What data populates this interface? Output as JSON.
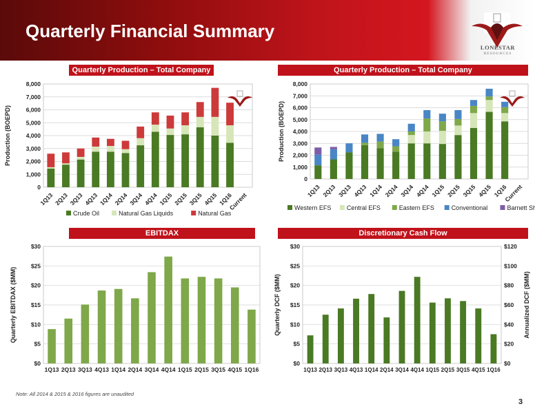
{
  "page": {
    "title": "Quarterly Financial Summary",
    "note": "Note: All 2014 & 2015 & 2016 figures are unaudited",
    "page_number": "3",
    "logo_text": "LONESTAR",
    "logo_sub": "RESOURCES"
  },
  "chart_data": [
    {
      "id": "production-by-product",
      "type": "bar",
      "stacked": true,
      "title": "Quarterly Production – Total Company",
      "ylabel": "Production (BOEPD)",
      "xlabel": "",
      "ylim": [
        0,
        8000
      ],
      "yticks": [
        0,
        1000,
        2000,
        3000,
        4000,
        5000,
        6000,
        7000,
        8000
      ],
      "ytick_labels": [
        "0",
        "1,000",
        "2,000",
        "3,000",
        "4,000",
        "5,000",
        "6,000",
        "7,000",
        "8,000"
      ],
      "grid": true,
      "legend": "bottom",
      "categories": [
        "1Q13",
        "2Q13",
        "3Q13",
        "4Q13",
        "1Q14",
        "2Q14",
        "3Q14",
        "4Q14",
        "1Q15",
        "2Q15",
        "3Q15",
        "4Q15",
        "1Q16",
        "Current"
      ],
      "series": [
        {
          "name": "Crude Oil",
          "color": "#4a7a24",
          "values": [
            1450,
            1750,
            2150,
            2750,
            2750,
            2650,
            3250,
            4300,
            4050,
            4100,
            4650,
            4000,
            3450,
            0
          ]
        },
        {
          "name": "Natural Gas Liquids",
          "color": "#d6e6b8",
          "values": [
            100,
            100,
            200,
            400,
            450,
            300,
            550,
            550,
            500,
            700,
            800,
            1450,
            1350,
            0
          ]
        },
        {
          "name": "Natural Gas",
          "color": "#cd3a3a",
          "values": [
            1050,
            850,
            650,
            700,
            550,
            650,
            900,
            950,
            1000,
            1000,
            1150,
            2250,
            1750,
            0
          ]
        }
      ]
    },
    {
      "id": "production-by-area",
      "type": "bar",
      "stacked": true,
      "title": "Quarterly Production – Total Company",
      "ylabel": "Production (BOEPD)",
      "xlabel": "",
      "ylim": [
        0,
        8000
      ],
      "yticks": [
        0,
        1000,
        2000,
        3000,
        4000,
        5000,
        6000,
        7000,
        8000
      ],
      "ytick_labels": [
        "0",
        "1,000",
        "2,000",
        "3,000",
        "4,000",
        "5,000",
        "6,000",
        "7,000",
        "8,000"
      ],
      "grid": true,
      "legend": "bottom",
      "categories": [
        "1Q13",
        "2Q13",
        "3Q13",
        "4Q13",
        "1Q14",
        "2Q14",
        "3Q14",
        "4Q14",
        "1Q15",
        "2Q15",
        "3Q15",
        "4Q15",
        "1Q16",
        "Current"
      ],
      "series": [
        {
          "name": "Western EFS",
          "color": "#4a7a24",
          "values": [
            1150,
            1650,
            2250,
            2850,
            2600,
            2300,
            3000,
            3000,
            2950,
            3700,
            4300,
            5650,
            4850,
            0
          ]
        },
        {
          "name": "Central EFS",
          "color": "#d6e6b8",
          "values": [
            0,
            0,
            0,
            0,
            0,
            0,
            700,
            1000,
            1100,
            800,
            1250,
            1000,
            700,
            0
          ]
        },
        {
          "name": "Eastern EFS",
          "color": "#7fa84a",
          "values": [
            0,
            0,
            0,
            200,
            550,
            450,
            300,
            1100,
            800,
            550,
            600,
            300,
            500,
            0
          ]
        },
        {
          "name": "Conventional",
          "color": "#4a86c5",
          "values": [
            900,
            850,
            750,
            700,
            650,
            600,
            650,
            700,
            650,
            750,
            500,
            650,
            450,
            0
          ]
        },
        {
          "name": "Barnett Shale",
          "color": "#7e5da6",
          "values": [
            600,
            200,
            0,
            0,
            0,
            0,
            0,
            0,
            0,
            0,
            0,
            0,
            0,
            0
          ]
        }
      ]
    },
    {
      "id": "ebitdax",
      "type": "bar",
      "title": "EBITDAX",
      "ylabel": "Quarterly EBITDAX ($MM)",
      "xlabel": "",
      "ylim": [
        0,
        30
      ],
      "yticks": [
        0,
        5,
        10,
        15,
        20,
        25,
        30
      ],
      "ytick_labels": [
        "$0",
        "$5",
        "$10",
        "$15",
        "$20",
        "$25",
        "$30"
      ],
      "grid": true,
      "categories": [
        "1Q13",
        "2Q13",
        "3Q13",
        "4Q13",
        "1Q14",
        "2Q14",
        "3Q14",
        "4Q14",
        "1Q15",
        "2Q15",
        "3Q15",
        "4Q15",
        "1Q16"
      ],
      "series": [
        {
          "color": "#7fa84a",
          "values": [
            8.8,
            11.5,
            15.1,
            18.7,
            19.1,
            16.7,
            23.4,
            27.4,
            21.8,
            22.2,
            21.8,
            19.5,
            13.8
          ]
        }
      ]
    },
    {
      "id": "dcf",
      "type": "bar",
      "title": "Discretionary Cash Flow",
      "ylabel": "Quarterly DCF ($MM)",
      "y2label": "Annualized DCF ($MM)",
      "xlabel": "",
      "ylim": [
        0,
        30
      ],
      "y2lim": [
        0,
        120
      ],
      "yticks": [
        0,
        5,
        10,
        15,
        20,
        25,
        30
      ],
      "ytick_labels": [
        "$0",
        "$5",
        "$10",
        "$15",
        "$20",
        "$25",
        "$30"
      ],
      "y2ticks": [
        0,
        20,
        40,
        60,
        80,
        100,
        120
      ],
      "y2tick_labels": [
        "$0",
        "$20",
        "$40",
        "$60",
        "$80",
        "$100",
        "$120"
      ],
      "grid": true,
      "categories": [
        "1Q13",
        "2Q13",
        "3Q13",
        "4Q13",
        "1Q14",
        "2Q14",
        "3Q14",
        "4Q14",
        "1Q15",
        "2Q15",
        "3Q15",
        "4Q15",
        "1Q16"
      ],
      "series": [
        {
          "color": "#4a7a24",
          "values": [
            7.2,
            12.5,
            14.1,
            16.6,
            17.8,
            11.8,
            18.6,
            22.2,
            15.6,
            16.7,
            16.0,
            14.1,
            7.5
          ]
        }
      ]
    }
  ]
}
